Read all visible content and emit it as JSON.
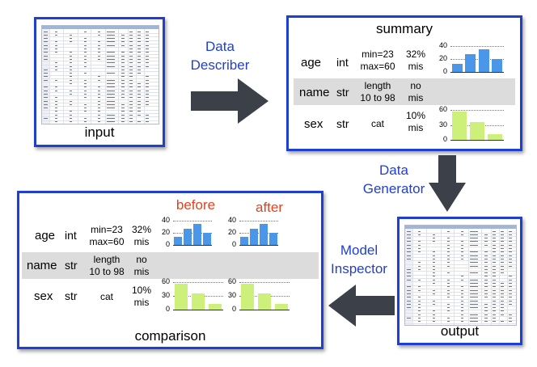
{
  "labels": {
    "input": "input",
    "summary": "summary",
    "output": "output",
    "comparison": "comparison",
    "before": "before",
    "after": "after"
  },
  "arrows": {
    "describer": [
      "Data",
      "Describer"
    ],
    "generator": [
      "Data",
      "Generator"
    ],
    "inspector": [
      "Model",
      "Inspector"
    ]
  },
  "rows": {
    "age": {
      "name": "age",
      "type": "int",
      "stats": [
        "min=23",
        "max=60"
      ],
      "missing": [
        "32%",
        "mis"
      ]
    },
    "name": {
      "name": "name",
      "type": "str",
      "stats": [
        "length",
        "10 to 98"
      ],
      "missing": [
        "no",
        "mis"
      ]
    },
    "sex": {
      "name": "sex",
      "type": "str",
      "stats": [
        "cat"
      ],
      "missing": [
        "10%",
        "mis"
      ]
    }
  },
  "colors": {
    "frame": "#1f3fd0",
    "arrow": "#3c4149",
    "age_bars": "#4a96e8",
    "sex_bars": "#ccf07a",
    "before_after": "#e8401c"
  },
  "chart_data": [
    {
      "id": "age",
      "type": "bar",
      "categories": [
        "1",
        "2",
        "3",
        "4"
      ],
      "values": [
        13,
        27,
        35,
        20
      ],
      "ylim": [
        0,
        40
      ],
      "yticks": [
        "40",
        "20",
        "0"
      ],
      "grid": true
    },
    {
      "id": "sex",
      "type": "bar",
      "categories": [
        "1",
        "2",
        "3"
      ],
      "values": [
        56,
        35,
        12
      ],
      "ylim": [
        0,
        60
      ],
      "yticks": [
        "60",
        "30",
        "0"
      ],
      "grid": true
    }
  ]
}
